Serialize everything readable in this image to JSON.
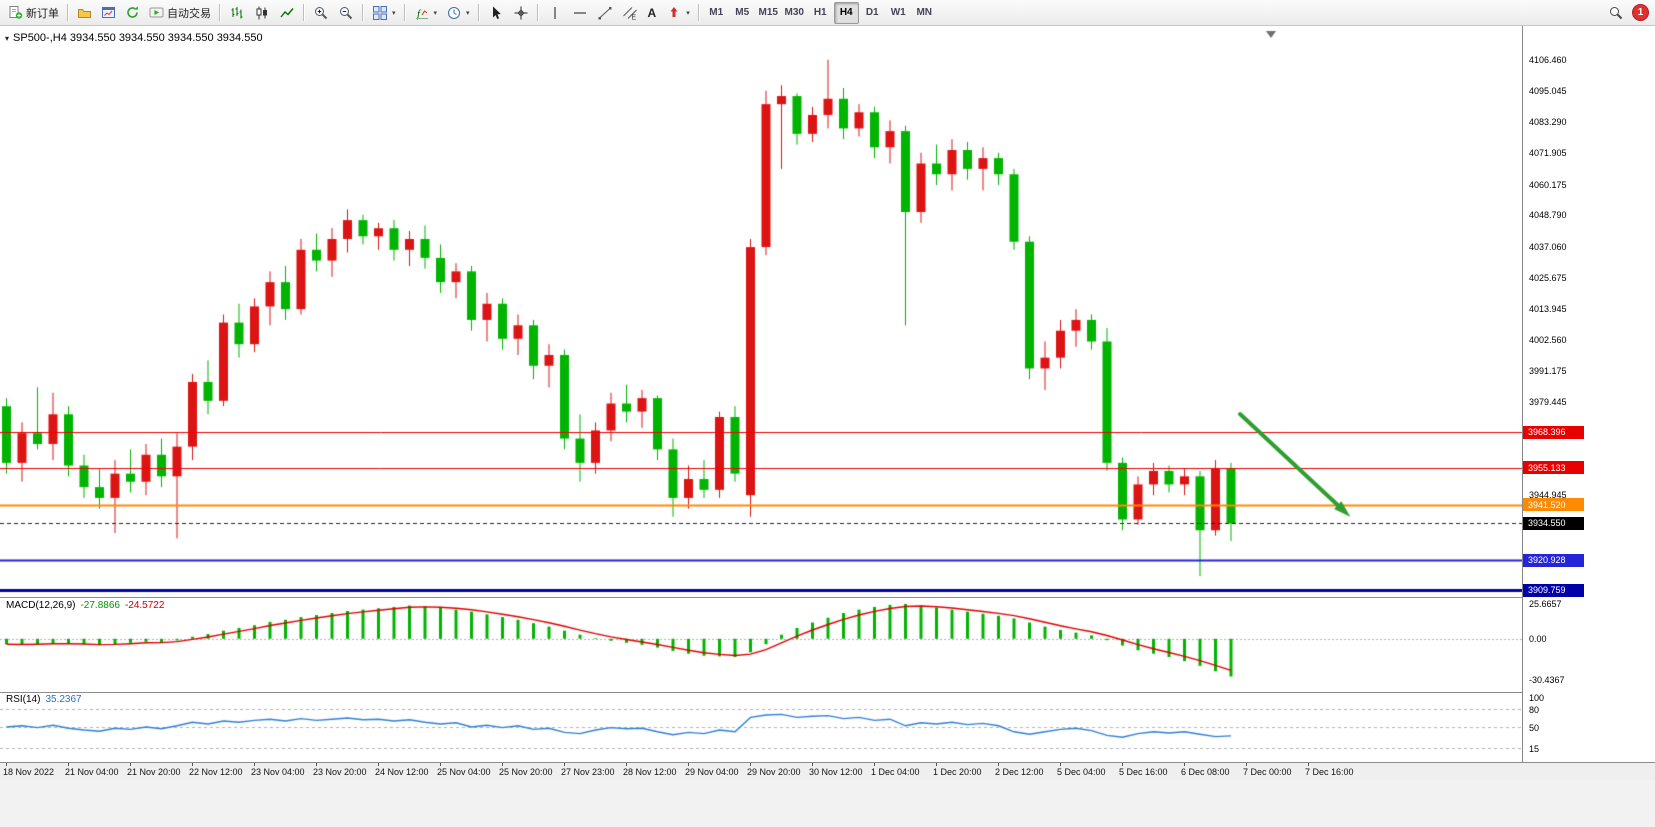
{
  "toolbar": {
    "new_order": "新订单",
    "auto_trading": "自动交易",
    "text_tool": "A",
    "timeframes": [
      "M1",
      "M5",
      "M15",
      "M30",
      "H1",
      "H4",
      "D1",
      "W1",
      "MN"
    ],
    "active_timeframe": "H4",
    "notification_count": "1",
    "icon_glyphs": {
      "dropdown": "▾",
      "header_caret": "▾"
    }
  },
  "chart_header": {
    "text": "SP500-,H4 3934.550 3934.550 3934.550 3934.550",
    "symbol": "SP500-",
    "period": "H4"
  },
  "chart_data": {
    "type": "candlestick",
    "symbol": "SP500-",
    "timeframe": "H4",
    "note": "Chinese color convention: red = up candle, green = down candle",
    "up_color": "#dc1414",
    "down_color": "#00b400",
    "price_range": {
      "top": 4117.5,
      "bottom": 3908.0
    },
    "current_price": 3934.55,
    "candles": [
      [
        3978,
        3981,
        3953,
        3957
      ],
      [
        3957,
        3972,
        3950,
        3968
      ],
      [
        3968,
        3985,
        3962,
        3964
      ],
      [
        3964,
        3983,
        3958,
        3975
      ],
      [
        3975,
        3978,
        3952,
        3956
      ],
      [
        3956,
        3960,
        3944,
        3948
      ],
      [
        3948,
        3955,
        3940,
        3944
      ],
      [
        3944,
        3958,
        3931,
        3953
      ],
      [
        3953,
        3962,
        3946,
        3950
      ],
      [
        3950,
        3964,
        3945,
        3960
      ],
      [
        3960,
        3966,
        3948,
        3952
      ],
      [
        3952,
        3968,
        3929,
        3963
      ],
      [
        3963,
        3990,
        3958,
        3987
      ],
      [
        3987,
        3995,
        3975,
        3980
      ],
      [
        3980,
        4012,
        3978,
        4009
      ],
      [
        4009,
        4016,
        3996,
        4001
      ],
      [
        4001,
        4018,
        3998,
        4015
      ],
      [
        4015,
        4028,
        4008,
        4024
      ],
      [
        4024,
        4030,
        4010,
        4014
      ],
      [
        4014,
        4040,
        4012,
        4036
      ],
      [
        4036,
        4042,
        4028,
        4032
      ],
      [
        4032,
        4044,
        4026,
        4040
      ],
      [
        4040,
        4051,
        4035,
        4047
      ],
      [
        4047,
        4049,
        4038,
        4041
      ],
      [
        4041,
        4046,
        4036,
        4044
      ],
      [
        4044,
        4047,
        4032,
        4036
      ],
      [
        4036,
        4043,
        4030,
        4040
      ],
      [
        4040,
        4045,
        4029,
        4033
      ],
      [
        4033,
        4038,
        4020,
        4024
      ],
      [
        4024,
        4031,
        4018,
        4028
      ],
      [
        4028,
        4030,
        4006,
        4010
      ],
      [
        4010,
        4020,
        4002,
        4016
      ],
      [
        4016,
        4018,
        3999,
        4003
      ],
      [
        4003,
        4012,
        3997,
        4008
      ],
      [
        4008,
        4010,
        3988,
        3993
      ],
      [
        3993,
        4001,
        3985,
        3997
      ],
      [
        3997,
        3999,
        3962,
        3966
      ],
      [
        3966,
        3975,
        3950,
        3957
      ],
      [
        3957,
        3972,
        3953,
        3969
      ],
      [
        3969,
        3983,
        3965,
        3979
      ],
      [
        3979,
        3986,
        3972,
        3976
      ],
      [
        3976,
        3984,
        3970,
        3981
      ],
      [
        3981,
        3982,
        3958,
        3962
      ],
      [
        3962,
        3966,
        3937,
        3944
      ],
      [
        3944,
        3956,
        3940,
        3951
      ],
      [
        3951,
        3958,
        3944,
        3947
      ],
      [
        3947,
        3976,
        3944,
        3974
      ],
      [
        3974,
        3978,
        3950,
        3953
      ],
      [
        3945,
        4040,
        3937,
        4037
      ],
      [
        4037,
        4095,
        4034,
        4090
      ],
      [
        4090,
        4097,
        4066,
        4093
      ],
      [
        4093,
        4094,
        4075,
        4079
      ],
      [
        4079,
        4089,
        4076,
        4086
      ],
      [
        4086,
        4106.46,
        4081,
        4092
      ],
      [
        4092,
        4096,
        4077,
        4081
      ],
      [
        4081,
        4090,
        4078,
        4087
      ],
      [
        4087,
        4089,
        4070,
        4074
      ],
      [
        4074,
        4084,
        4068,
        4080
      ],
      [
        4080,
        4082,
        4008,
        4050
      ],
      [
        4050,
        4072,
        4046,
        4068
      ],
      [
        4068,
        4075,
        4060,
        4064
      ],
      [
        4064,
        4077,
        4058,
        4073
      ],
      [
        4073,
        4076,
        4062,
        4066
      ],
      [
        4066,
        4074,
        4058,
        4070
      ],
      [
        4070,
        4072,
        4060,
        4064
      ],
      [
        4064,
        4066,
        4036,
        4039
      ],
      [
        4039,
        4041,
        3988,
        3992
      ],
      [
        3992,
        4002,
        3984,
        3996
      ],
      [
        3996,
        4010,
        3992,
        4006
      ],
      [
        4006,
        4014,
        4000,
        4010
      ],
      [
        4010,
        4012,
        3999,
        4002
      ],
      [
        4002,
        4007,
        3954,
        3957
      ],
      [
        3957,
        3959,
        3932,
        3936
      ],
      [
        3936,
        3952,
        3934,
        3949
      ],
      [
        3949,
        3957,
        3945,
        3954
      ],
      [
        3954,
        3956,
        3946,
        3949
      ],
      [
        3949,
        3955,
        3945,
        3952
      ],
      [
        3952,
        3954,
        3915,
        3932
      ],
      [
        3932,
        3958,
        3930,
        3955
      ],
      [
        3955,
        3957,
        3928,
        3934.55
      ]
    ],
    "hlines": [
      {
        "price": 3968.396,
        "color": "#f00000",
        "width": 1
      },
      {
        "price": 3955.133,
        "color": "#f00000",
        "width": 1
      },
      {
        "price": 3941.52,
        "color": "#ff8a00",
        "width": 2
      },
      {
        "price": 3920.928,
        "color": "#2424d8",
        "width": 2
      },
      {
        "price": 3909.759,
        "color": "#0000a8",
        "width": 3
      }
    ],
    "price_axis": {
      "labels": [
        4106.46,
        4095.045,
        4083.29,
        4071.905,
        4060.175,
        4048.79,
        4037.06,
        4025.675,
        4013.945,
        4002.56,
        3991.175,
        3979.445,
        3944.945
      ],
      "tags": [
        {
          "price": 3968.396,
          "text": "3968.396",
          "bg": "#e80000"
        },
        {
          "price": 3955.133,
          "text": "3955.133",
          "bg": "#e80000"
        },
        {
          "price": 3941.52,
          "text": "3941.520",
          "bg": "#ff8a00"
        },
        {
          "price": 3934.55,
          "text": "3934.550",
          "bg": "#000000"
        },
        {
          "price": 3920.928,
          "text": "3920.928",
          "bg": "#2424d8"
        },
        {
          "price": 3909.759,
          "text": "3909.759",
          "bg": "#0000a8"
        }
      ]
    },
    "macd": {
      "name": "MACD(12,26,9)",
      "value_main": "-27.8866",
      "value_signal": "-24.5722",
      "hist_color": "#00b400",
      "signal_color": "#e00000",
      "axis": [
        {
          "v": 25.6657,
          "t": "25.6657"
        },
        {
          "v": 0,
          "t": "0.00"
        },
        {
          "v": -30.4367,
          "t": "-30.4367"
        }
      ],
      "hist": [
        -4,
        -4.5,
        -3.8,
        -3.2,
        -3.6,
        -4.2,
        -4.8,
        -4,
        -3,
        -2.2,
        -2.6,
        -1.2,
        1.5,
        3.5,
        6,
        8,
        10,
        12.5,
        14,
        16,
        17.5,
        19,
        20.5,
        21.5,
        22.5,
        23.5,
        24.5,
        24,
        23,
        21.5,
        20,
        18,
        16,
        14,
        11.5,
        9,
        6,
        3,
        0.5,
        -1.5,
        -3,
        -4.5,
        -6.5,
        -9,
        -11,
        -12.5,
        -13,
        -13.5,
        -10,
        -4,
        3,
        8,
        12,
        15.5,
        19,
        21.5,
        23.5,
        25,
        25.6657,
        24.5,
        23,
        21.5,
        20,
        18.5,
        17,
        15,
        12,
        9,
        6.5,
        4.5,
        2.5,
        -1,
        -5,
        -8.5,
        -11,
        -13.5,
        -16.5,
        -20,
        -24,
        -27.8866
      ]
    },
    "rsi": {
      "name": "RSI(14)",
      "value": "35.2367",
      "color": "#2f7fd6",
      "levels": [
        80,
        50,
        15
      ],
      "axis": [
        {
          "v": 100,
          "t": "100"
        },
        {
          "v": 80,
          "t": "80"
        },
        {
          "v": 50,
          "t": "50"
        },
        {
          "v": 15,
          "t": "15"
        }
      ],
      "values": [
        50,
        52,
        49,
        53,
        48,
        45,
        43,
        48,
        46,
        50,
        47,
        52,
        58,
        55,
        60,
        58,
        61,
        63,
        60,
        64,
        61,
        63,
        65,
        62,
        63,
        60,
        62,
        58,
        55,
        57,
        50,
        53,
        49,
        52,
        46,
        48,
        41,
        39,
        45,
        49,
        47,
        48,
        42,
        37,
        41,
        39,
        45,
        42,
        66,
        70,
        71,
        66,
        68,
        69,
        64,
        66,
        61,
        63,
        52,
        57,
        55,
        58,
        54,
        56,
        52,
        42,
        38,
        42,
        46,
        48,
        44,
        36,
        33,
        39,
        42,
        40,
        42,
        38,
        34,
        35.2367
      ]
    },
    "arrow": {
      "from": [
        1240,
        388
      ],
      "to": [
        1343,
        484
      ],
      "color": "#2f9e2f",
      "width": 4
    },
    "time_labels": [
      "18 Nov 2022",
      "21 Nov 04:00",
      "21 Nov 20:00",
      "22 Nov 12:00",
      "23 Nov 04:00",
      "23 Nov 20:00",
      "24 Nov 12:00",
      "25 Nov 04:00",
      "25 Nov 20:00",
      "27 Nov 23:00",
      "28 Nov 12:00",
      "29 Nov 04:00",
      "29 Nov 20:00",
      "30 Nov 12:00",
      "1 Dec 04:00",
      "1 Dec 20:00",
      "2 Dec 12:00",
      "5 Dec 04:00",
      "5 Dec 16:00",
      "6 Dec 08:00",
      "7 Dec 00:00",
      "7 Dec 16:00"
    ]
  }
}
